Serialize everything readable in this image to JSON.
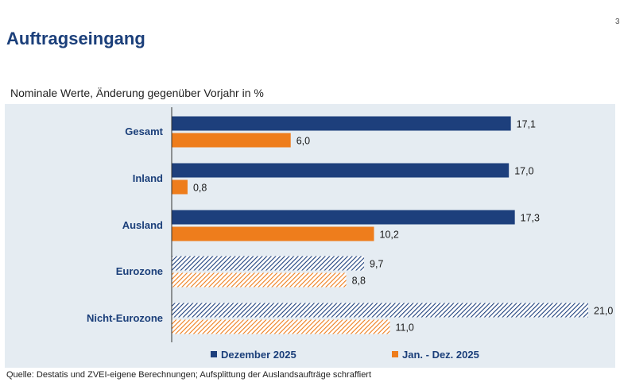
{
  "title": "Auftragseingang",
  "subtitle": "Nominale Werte, Änderung gegenüber Vorjahr in %",
  "source": "Quelle: Destatis und ZVEI-eigene Berechnungen; Aufsplittung der Auslandsaufträge schraffiert",
  "edge_mark": "3",
  "colors": {
    "dezember": "#1d3f7c",
    "jahr": "#ee7d1c",
    "background": "#e5ecf2",
    "label": "#1b3f7a"
  },
  "chart_data": {
    "type": "bar",
    "orientation": "horizontal",
    "title": "Auftragseingang",
    "subtitle": "Nominale Werte, Änderung gegenüber Vorjahr in %",
    "categories": [
      "Gesamt",
      "Inland",
      "Ausland",
      "Eurozone",
      "Nicht-Eurozone"
    ],
    "hatched_categories": [
      "Eurozone",
      "Nicht-Eurozone"
    ],
    "series": [
      {
        "name": "Dezember 2025",
        "values": [
          17.1,
          17.0,
          17.3,
          9.7,
          21.0
        ],
        "labels": [
          "17,1",
          "17,0",
          "17,3",
          "9,7",
          "21,0"
        ]
      },
      {
        "name": "Jan. - Dez. 2025",
        "values": [
          6.0,
          0.8,
          10.2,
          8.8,
          11.0
        ],
        "labels": [
          "6,0",
          "0,8",
          "10,2",
          "8,8",
          "11,0"
        ]
      }
    ],
    "xlim": [
      0,
      21
    ],
    "legend": "bottom",
    "grid": false
  }
}
